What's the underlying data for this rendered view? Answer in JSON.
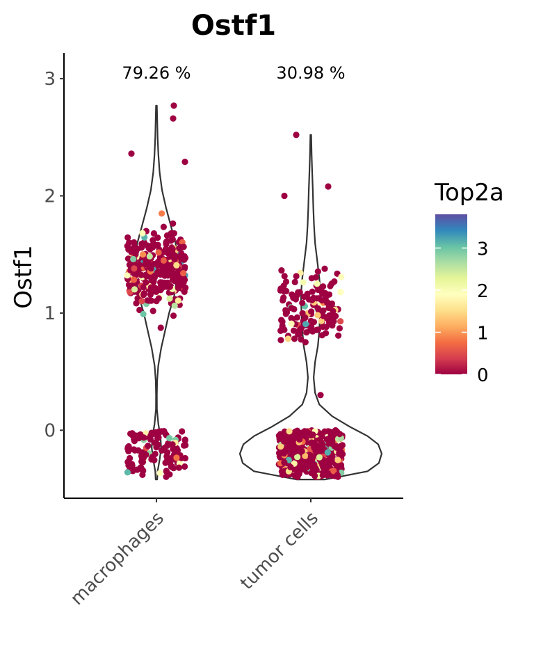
{
  "chart_data": {
    "type": "violin",
    "title": "Ostf1",
    "xlabel": "",
    "ylabel": "Ostf1",
    "categories": [
      "macrophages",
      "tumor cells"
    ],
    "percent_labels": [
      "79.26 %",
      "30.98 %"
    ],
    "yticks": [
      0,
      1,
      2,
      3
    ],
    "ylim": [
      -0.58,
      3.22
    ],
    "violins": [
      {
        "category": "macrophages",
        "max_value": 2.77,
        "min_value": -0.42,
        "profile": [
          [
            -0.42,
            0.02
          ],
          [
            -0.35,
            0.03
          ],
          [
            -0.25,
            0.08
          ],
          [
            -0.15,
            0.12
          ],
          [
            -0.05,
            0.1
          ],
          [
            0.05,
            0.05
          ],
          [
            0.18,
            0.012
          ],
          [
            0.3,
            0.01
          ],
          [
            0.42,
            0.018
          ],
          [
            0.55,
            0.045
          ],
          [
            0.7,
            0.12
          ],
          [
            0.85,
            0.22
          ],
          [
            1.0,
            0.32
          ],
          [
            1.15,
            0.45
          ],
          [
            1.3,
            0.52
          ],
          [
            1.45,
            0.54
          ],
          [
            1.6,
            0.48
          ],
          [
            1.75,
            0.36
          ],
          [
            1.9,
            0.24
          ],
          [
            2.05,
            0.14
          ],
          [
            2.2,
            0.08
          ],
          [
            2.35,
            0.05
          ],
          [
            2.5,
            0.03
          ],
          [
            2.65,
            0.02
          ],
          [
            2.77,
            0.01
          ]
        ]
      },
      {
        "category": "tumor cells",
        "max_value": 2.52,
        "min_value": -0.42,
        "profile": [
          [
            -0.42,
            0.2
          ],
          [
            -0.35,
            0.8
          ],
          [
            -0.28,
            0.96
          ],
          [
            -0.2,
            1.0
          ],
          [
            -0.12,
            0.95
          ],
          [
            -0.05,
            0.8
          ],
          [
            0.03,
            0.55
          ],
          [
            0.12,
            0.3
          ],
          [
            0.22,
            0.12
          ],
          [
            0.32,
            0.06
          ],
          [
            0.45,
            0.04
          ],
          [
            0.58,
            0.06
          ],
          [
            0.72,
            0.1
          ],
          [
            0.85,
            0.12
          ],
          [
            1.0,
            0.13
          ],
          [
            1.15,
            0.14
          ],
          [
            1.3,
            0.12
          ],
          [
            1.45,
            0.09
          ],
          [
            1.6,
            0.06
          ],
          [
            1.75,
            0.045
          ],
          [
            1.9,
            0.035
          ],
          [
            2.05,
            0.028
          ],
          [
            2.2,
            0.02
          ],
          [
            2.35,
            0.012
          ],
          [
            2.52,
            0.006
          ]
        ]
      }
    ],
    "legend": {
      "title": "Top2a",
      "position": "right",
      "ticks": [
        0,
        1,
        2,
        3
      ],
      "range": [
        0,
        3.8
      ],
      "colors": [
        "#9e0142",
        "#d53e4f",
        "#f46d43",
        "#fdae61",
        "#fee08b",
        "#ffffbf",
        "#e6f598",
        "#abdda4",
        "#66c2a5",
        "#3288bd",
        "#5e4fa2"
      ]
    },
    "grid": false
  }
}
